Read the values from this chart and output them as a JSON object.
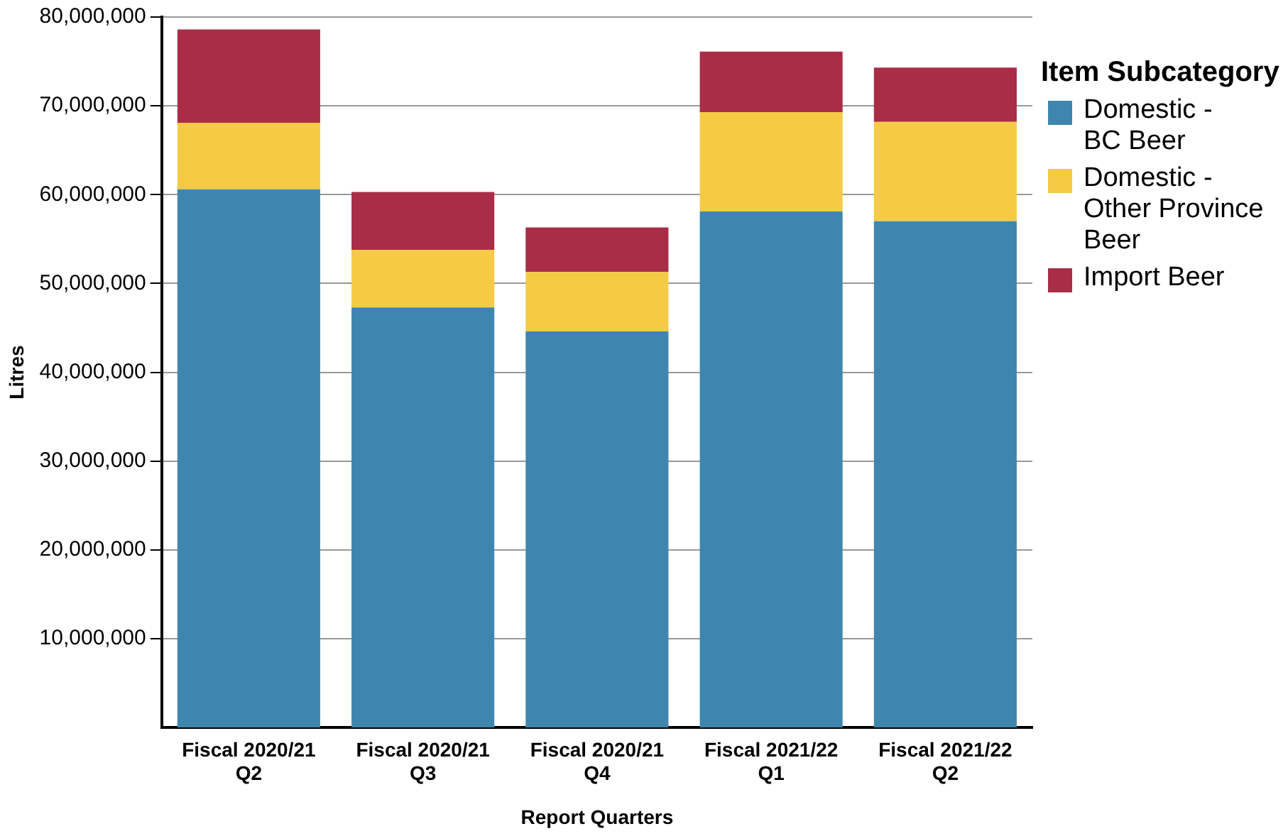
{
  "chart_data": {
    "type": "bar",
    "stacked": true,
    "xlabel": "Report Quarters",
    "ylabel": "Litres",
    "legend_title": "Item Subcategory",
    "legend": "right",
    "grid": "y",
    "categories": [
      "Fiscal 2020/21 Q2",
      "Fiscal 2020/21 Q3",
      "Fiscal 2020/21 Q4",
      "Fiscal 2021/22 Q1",
      "Fiscal 2021/22 Q2"
    ],
    "ylim": [
      0,
      80000000
    ],
    "yticks": [
      {
        "value": 10000000,
        "label": "10,000,000"
      },
      {
        "value": 20000000,
        "label": "20,000,000"
      },
      {
        "value": 30000000,
        "label": "30,000,000"
      },
      {
        "value": 40000000,
        "label": "40,000,000"
      },
      {
        "value": 50000000,
        "label": "50,000,000"
      },
      {
        "value": 60000000,
        "label": "60,000,000"
      },
      {
        "value": 70000000,
        "label": "70,000,000"
      },
      {
        "value": 80000000,
        "label": "80,000,000"
      }
    ],
    "series": [
      {
        "name": "Domestic - BC Beer",
        "color": "#3f86ae",
        "values": [
          60600000,
          47300000,
          44600000,
          58100000,
          57000000
        ]
      },
      {
        "name": "Domestic - Other Province Beer",
        "color": "#f5cb45",
        "values": [
          7500000,
          6500000,
          6700000,
          11200000,
          11200000
        ]
      },
      {
        "name": "Import Beer",
        "color": "#a92d47",
        "values": [
          10500000,
          6500000,
          5000000,
          6800000,
          6100000
        ]
      }
    ]
  }
}
